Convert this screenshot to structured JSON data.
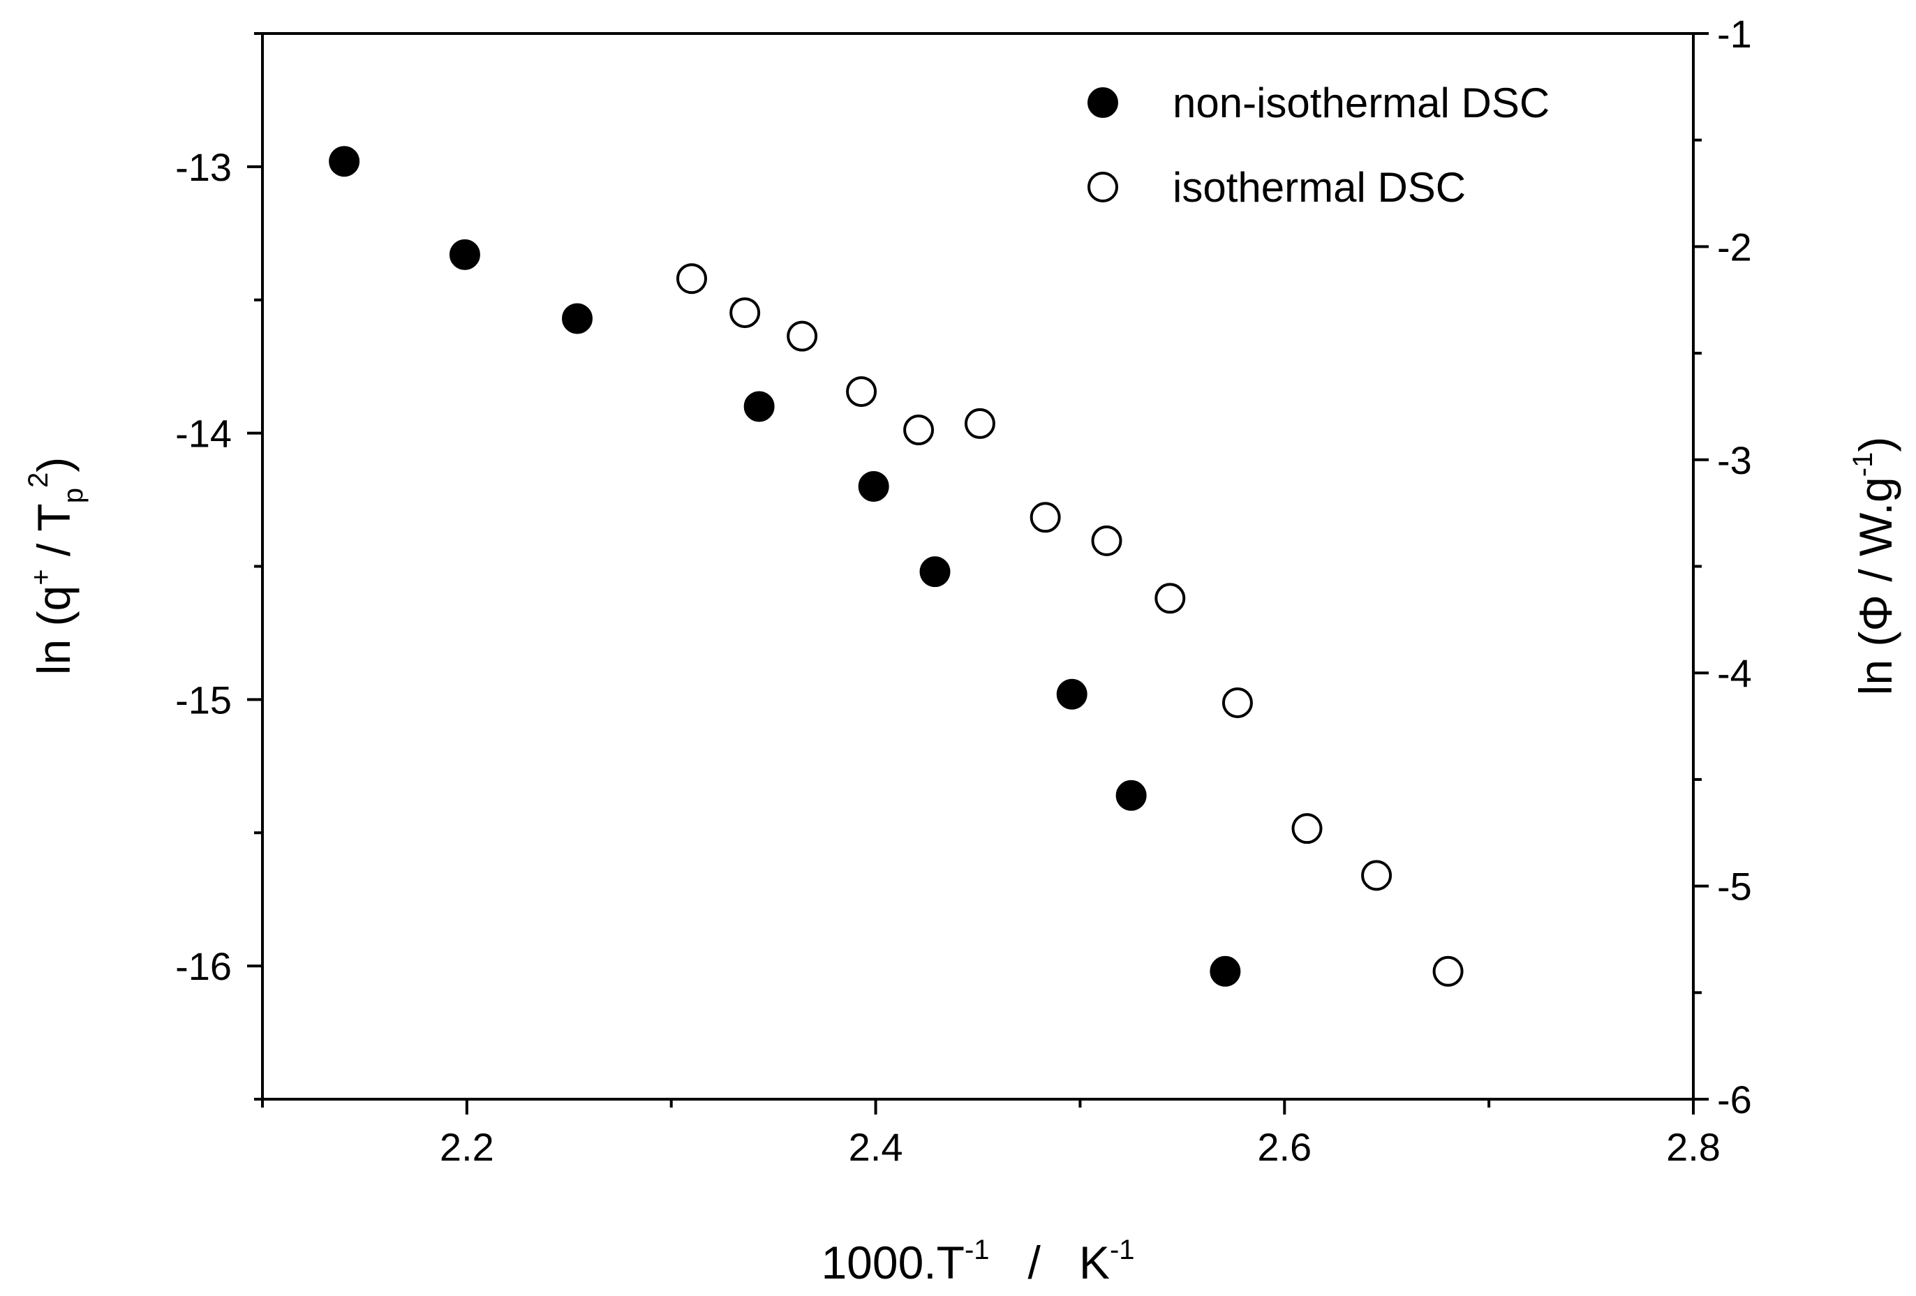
{
  "chart_data": {
    "type": "scatter",
    "title": "",
    "xlabel": {
      "base": "1000.T",
      "exp": "-1",
      "sep": "/",
      "unit": "K",
      "unit_exp": "-1"
    },
    "ylabel_left": {
      "pre": "ln (q",
      "sup1": "+",
      "mid": " / T",
      "sub": "p",
      "sup2": "2",
      "post": ")"
    },
    "ylabel_right": {
      "pre": "ln (Φ / W.g",
      "sup": "-1",
      "post": ")"
    },
    "xlim": [
      2.1,
      2.8
    ],
    "ylim_left": [
      -16.5,
      -12.5
    ],
    "ylim_right": [
      -6,
      -1
    ],
    "x_ticks": [
      "2.2",
      "2.4",
      "2.6",
      "2.8"
    ],
    "y_left_ticks": [
      "-13",
      "-14",
      "-15",
      "-16"
    ],
    "y_right_ticks": [
      "-1",
      "-2",
      "-3",
      "-4",
      "-5",
      "-6"
    ],
    "legend_position": "top-right",
    "series": [
      {
        "name": "non-isothermal DSC",
        "marker": "filled-circle",
        "axis": "left",
        "x": [
          2.14,
          2.199,
          2.254,
          2.343,
          2.399,
          2.429,
          2.496,
          2.525,
          2.571
        ],
        "y": [
          -12.98,
          -13.33,
          -13.57,
          -13.9,
          -14.2,
          -14.52,
          -14.98,
          -15.36,
          -16.02
        ]
      },
      {
        "name": "isothermal DSC",
        "marker": "open-circle",
        "axis": "right",
        "x": [
          2.31,
          2.336,
          2.364,
          2.393,
          2.421,
          2.451,
          2.483,
          2.513,
          2.544,
          2.577,
          2.611,
          2.645,
          2.68
        ],
        "y": [
          -2.15,
          -2.31,
          -2.42,
          -2.68,
          -2.86,
          -2.83,
          -3.27,
          -3.38,
          -3.65,
          -4.14,
          -4.73,
          -4.95,
          -5.4
        ]
      }
    ]
  }
}
